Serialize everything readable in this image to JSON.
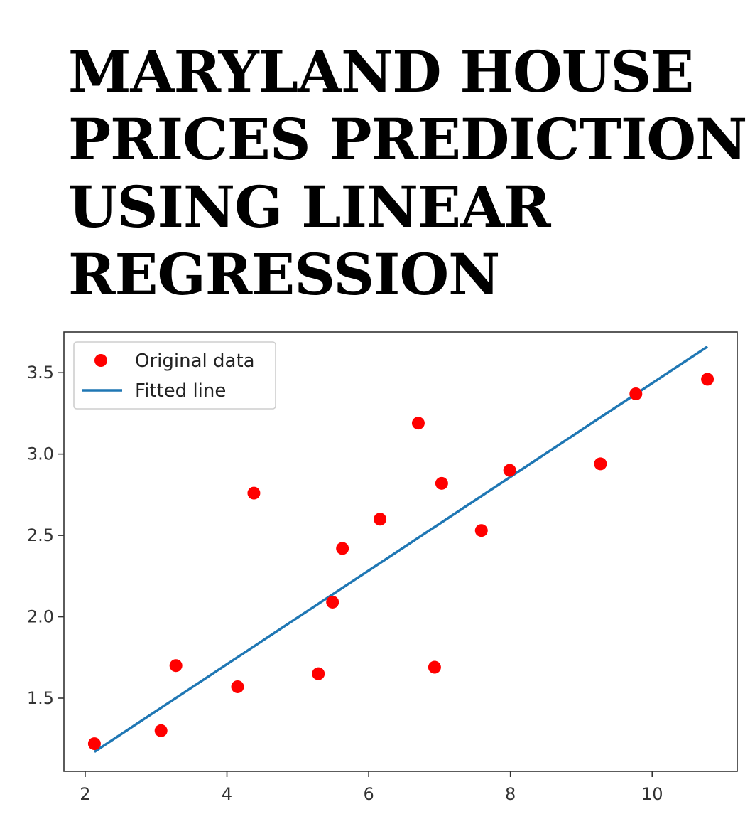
{
  "title_lines": [
    "MARYLAND HOUSE",
    "PRICES PREDICTIONS",
    "USING LINEAR",
    "REGRESSION"
  ],
  "chart_data": {
    "type": "scatter",
    "title": "",
    "xlabel": "",
    "ylabel": "",
    "xlim": [
      1.7,
      11.2
    ],
    "ylim": [
      1.05,
      3.75
    ],
    "grid": false,
    "legend": {
      "placement": "top-left",
      "entries": [
        {
          "label": "Original data",
          "kind": "marker",
          "color": "#ff0000"
        },
        {
          "label": "Fitted line",
          "kind": "line",
          "color": "#1f77b4"
        }
      ]
    },
    "x_ticks": [
      {
        "value": 2,
        "label": "2"
      },
      {
        "value": 4,
        "label": "4"
      },
      {
        "value": 6,
        "label": "6"
      },
      {
        "value": 8,
        "label": "8"
      },
      {
        "value": 10,
        "label": "10"
      }
    ],
    "y_ticks": [
      {
        "value": 1.5,
        "label": "1.5"
      },
      {
        "value": 2.0,
        "label": "2.0"
      },
      {
        "value": 2.5,
        "label": "2.5"
      },
      {
        "value": 3.0,
        "label": "3.0"
      },
      {
        "value": 3.5,
        "label": "3.5"
      }
    ],
    "series": [
      {
        "name": "Original data",
        "kind": "scatter",
        "color": "#ff0000",
        "points": [
          [
            2.13,
            1.22
          ],
          [
            3.07,
            1.3
          ],
          [
            3.28,
            1.7
          ],
          [
            4.15,
            1.57
          ],
          [
            4.38,
            2.76
          ],
          [
            5.29,
            1.65
          ],
          [
            5.49,
            2.09
          ],
          [
            5.63,
            2.42
          ],
          [
            6.16,
            2.6
          ],
          [
            6.7,
            3.19
          ],
          [
            6.93,
            1.69
          ],
          [
            7.03,
            2.82
          ],
          [
            7.59,
            2.53
          ],
          [
            7.99,
            2.9
          ],
          [
            9.27,
            2.94
          ],
          [
            9.77,
            3.37
          ],
          [
            10.78,
            3.46
          ]
        ]
      },
      {
        "name": "Fitted line",
        "kind": "line",
        "color": "#1f77b4",
        "points": [
          [
            2.13,
            1.17
          ],
          [
            10.78,
            3.66
          ]
        ]
      }
    ]
  }
}
